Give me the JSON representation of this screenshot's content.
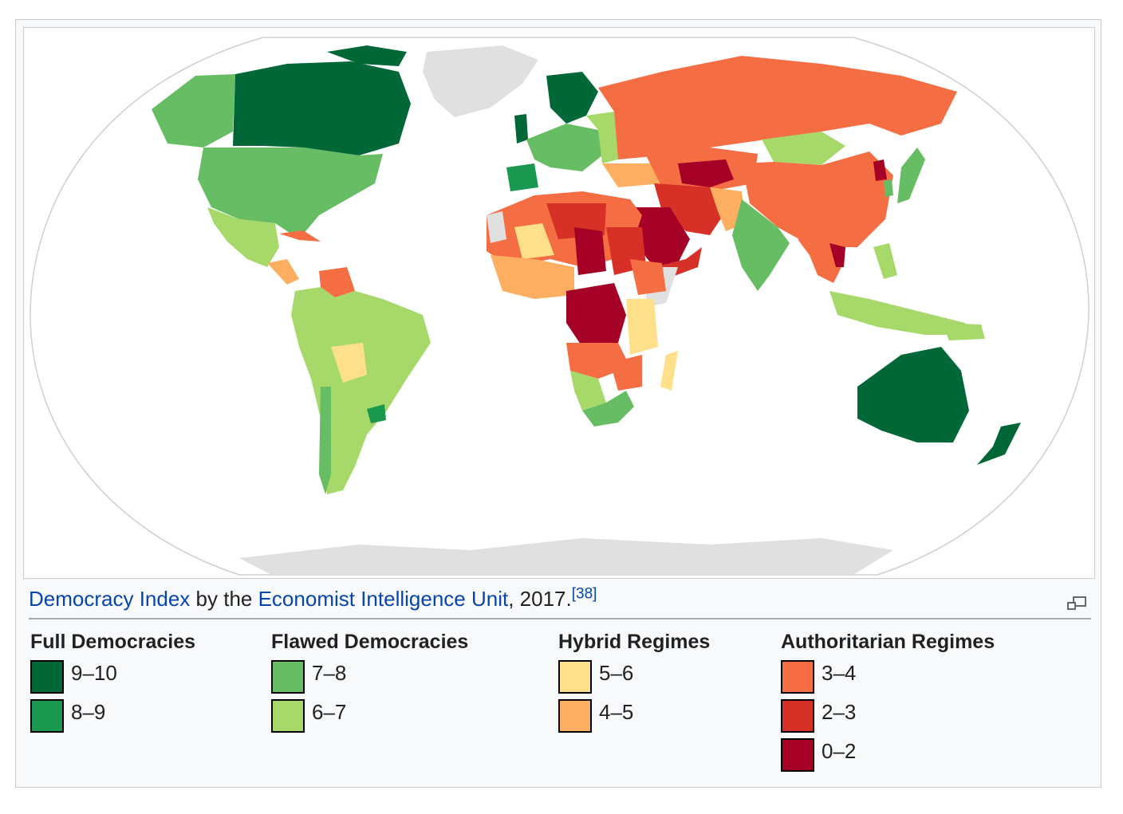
{
  "caption": {
    "link1": "Democracy Index",
    "text1": " by the ",
    "link2": "Economist Intelligence Unit",
    "text2": ", 2017.",
    "ref": "[38]"
  },
  "icons": {
    "enlarge": "magnify-icon"
  },
  "legend": [
    {
      "title": "Full Democracies",
      "items": [
        {
          "label": "9–10",
          "color": "#006837"
        },
        {
          "label": "8–9",
          "color": "#1a9850"
        }
      ]
    },
    {
      "title": "Flawed Democracies",
      "items": [
        {
          "label": "7–8",
          "color": "#66bd63"
        },
        {
          "label": "6–7",
          "color": "#a6d96a"
        }
      ]
    },
    {
      "title": "Hybrid Regimes",
      "items": [
        {
          "label": "5–6",
          "color": "#fee08b"
        },
        {
          "label": "4–5",
          "color": "#fdae61"
        }
      ]
    },
    {
      "title": "Authoritarian Regimes",
      "items": [
        {
          "label": "3–4",
          "color": "#f46d43"
        },
        {
          "label": "2–3",
          "color": "#d73027"
        },
        {
          "label": "0–2",
          "color": "#a50026"
        }
      ]
    }
  ],
  "map_colors": {
    "ocean": "#ffffff",
    "no_data": "#e0e0e0",
    "outline": "#d0d0d0"
  }
}
